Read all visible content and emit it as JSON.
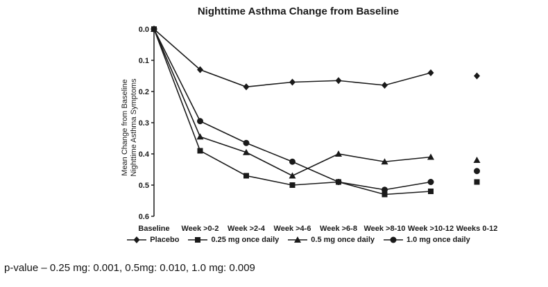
{
  "title": "Nighttime Asthma Change from Baseline",
  "footnote": "p-value – 0.25 mg: 0.001, 0.5mg: 0.010, 1.0 mg: 0.009",
  "chart_data": {
    "type": "line",
    "categories": [
      "Baseline",
      "Week >0-2",
      "Week >2-4",
      "Week >4-6",
      "Week >6-8",
      "Week >8-10",
      "Week >10-12",
      "Weeks 0-12"
    ],
    "ylabel_lines": [
      "Mean Change from Baseline",
      "Nighttime Asthma Symptoms"
    ],
    "ylim": [
      -0.6,
      0.0
    ],
    "yticks": [
      0.0,
      -0.1,
      -0.2,
      -0.3,
      -0.4,
      -0.5,
      -0.6
    ],
    "grid": false,
    "legend_position": "bottom",
    "line_color": "#1a1a1a",
    "note": "Weeks 0-12 values are detached summary points not connected by lines",
    "series": [
      {
        "name": "Placebo",
        "marker": "diamond",
        "values": [
          0.0,
          -0.13,
          -0.185,
          -0.17,
          -0.165,
          -0.18,
          -0.14
        ],
        "weeks_0_12": -0.15
      },
      {
        "name": "0.25 mg once daily",
        "marker": "square",
        "values": [
          0.0,
          -0.39,
          -0.47,
          -0.5,
          -0.49,
          -0.53,
          -0.52
        ],
        "weeks_0_12": -0.49
      },
      {
        "name": "0.5 mg once daily",
        "marker": "triangle",
        "values": [
          0.0,
          -0.345,
          -0.395,
          -0.47,
          -0.4,
          -0.425,
          -0.41
        ],
        "weeks_0_12": -0.42
      },
      {
        "name": "1.0 mg once daily",
        "marker": "circle",
        "values": [
          0.0,
          -0.295,
          -0.365,
          -0.425,
          -0.49,
          -0.515,
          -0.49
        ],
        "weeks_0_12": -0.455
      }
    ]
  }
}
